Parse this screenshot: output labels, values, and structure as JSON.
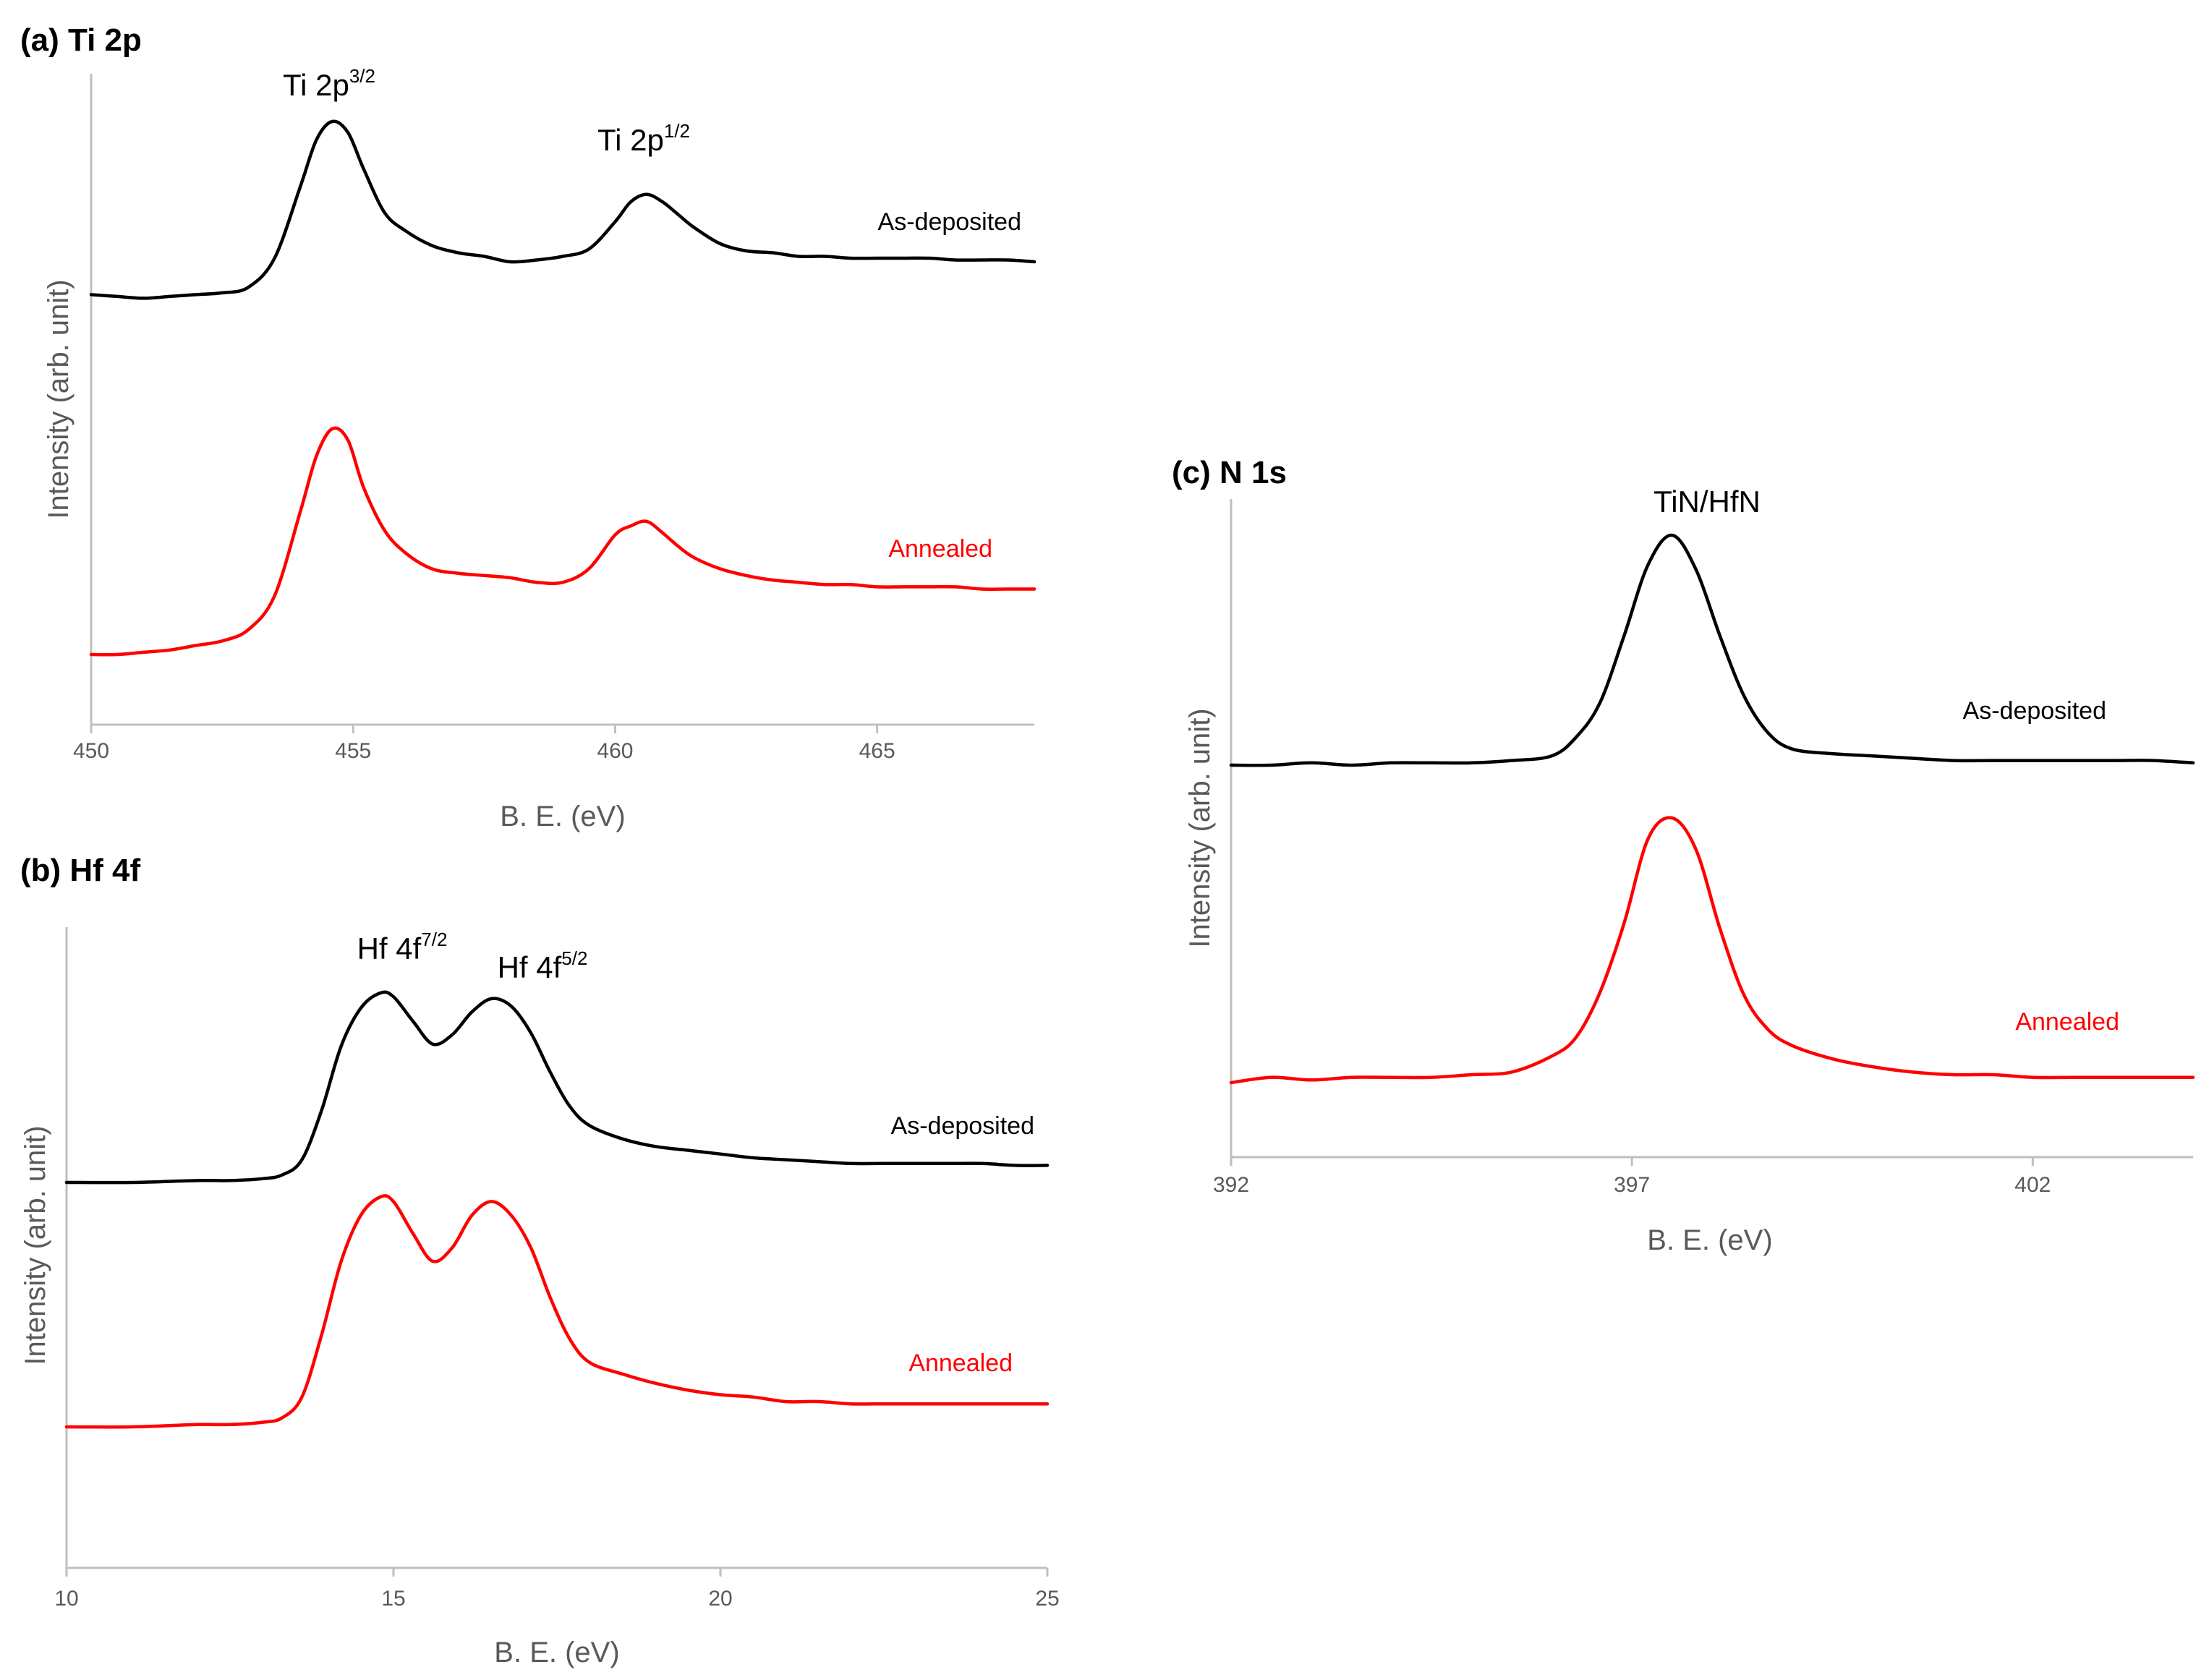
{
  "chart_data": [
    {
      "type": "line",
      "title": "(a) Ti 2p",
      "xlabel": "B. E. (eV)",
      "ylabel": "Intensity (arb. unit)",
      "xlim": [
        450,
        468
      ],
      "xticks": [
        450,
        455,
        460,
        465
      ],
      "x": [
        450.0,
        450.5,
        451.0,
        451.5,
        452.0,
        452.5,
        453.0,
        453.5,
        454.0,
        454.3,
        454.6,
        454.9,
        455.2,
        455.6,
        456.0,
        456.5,
        457.0,
        457.5,
        458.0,
        458.5,
        459.0,
        459.5,
        460.0,
        460.3,
        460.6,
        460.9,
        461.2,
        461.5,
        462.0,
        462.5,
        463.0,
        463.5,
        464.0,
        464.5,
        465.0,
        465.5,
        466.0,
        466.5,
        467.0,
        467.5,
        468.0
      ],
      "series": [
        {
          "name": "As-deposited",
          "color": "#000000",
          "values": [
            0.05,
            0.04,
            0.03,
            0.04,
            0.05,
            0.06,
            0.09,
            0.25,
            0.65,
            0.9,
            1.0,
            0.94,
            0.74,
            0.5,
            0.4,
            0.32,
            0.28,
            0.26,
            0.23,
            0.24,
            0.26,
            0.3,
            0.45,
            0.56,
            0.6,
            0.56,
            0.49,
            0.42,
            0.33,
            0.29,
            0.28,
            0.26,
            0.26,
            0.25,
            0.25,
            0.25,
            0.25,
            0.24,
            0.24,
            0.24,
            0.23
          ]
        },
        {
          "name": "Annealed",
          "color": "#ff0000",
          "values": [
            0.0,
            0.0,
            0.01,
            0.02,
            0.04,
            0.06,
            0.11,
            0.26,
            0.64,
            0.88,
            1.0,
            0.95,
            0.74,
            0.55,
            0.45,
            0.38,
            0.36,
            0.35,
            0.34,
            0.32,
            0.32,
            0.38,
            0.53,
            0.57,
            0.59,
            0.54,
            0.48,
            0.43,
            0.38,
            0.35,
            0.33,
            0.32,
            0.31,
            0.31,
            0.3,
            0.3,
            0.3,
            0.3,
            0.29,
            0.29,
            0.29
          ]
        }
      ],
      "annotations": [
        {
          "label": "Ti 2p",
          "sup": "3/2",
          "x": 454.6
        },
        {
          "label": "Ti 2p",
          "sup": "1/2",
          "x": 460.6
        }
      ]
    },
    {
      "type": "line",
      "title": "(b) Hf 4f",
      "xlabel": "B. E. (eV)",
      "ylabel": "Intensity (arb. unit)",
      "xlim": [
        10,
        25
      ],
      "xticks": [
        10,
        15,
        20,
        25
      ],
      "x": [
        10.0,
        11.0,
        12.0,
        12.5,
        13.0,
        13.3,
        13.6,
        13.9,
        14.2,
        14.5,
        14.8,
        15.0,
        15.3,
        15.6,
        15.9,
        16.2,
        16.5,
        16.8,
        17.1,
        17.4,
        17.7,
        18.0,
        18.5,
        19.0,
        19.5,
        20.0,
        20.5,
        21.0,
        21.5,
        22.0,
        22.5,
        23.0,
        23.5,
        24.0,
        24.5,
        25.0
      ],
      "series": [
        {
          "name": "As-deposited",
          "color": "#000000",
          "values": [
            0.0,
            0.0,
            0.01,
            0.01,
            0.02,
            0.04,
            0.12,
            0.38,
            0.72,
            0.92,
            1.0,
            0.98,
            0.85,
            0.73,
            0.78,
            0.9,
            0.97,
            0.93,
            0.79,
            0.58,
            0.4,
            0.3,
            0.23,
            0.19,
            0.17,
            0.15,
            0.13,
            0.12,
            0.11,
            0.1,
            0.1,
            0.1,
            0.1,
            0.1,
            0.09,
            0.09
          ]
        },
        {
          "name": "Annealed",
          "color": "#ff0000",
          "values": [
            0.0,
            0.0,
            0.01,
            0.01,
            0.02,
            0.04,
            0.13,
            0.4,
            0.72,
            0.92,
            1.0,
            0.98,
            0.84,
            0.72,
            0.78,
            0.92,
            0.98,
            0.92,
            0.78,
            0.56,
            0.38,
            0.28,
            0.23,
            0.19,
            0.16,
            0.14,
            0.13,
            0.11,
            0.11,
            0.1,
            0.1,
            0.1,
            0.1,
            0.1,
            0.1,
            0.1
          ]
        }
      ],
      "annotations": [
        {
          "label": "Hf 4f",
          "sup": "7/2",
          "x": 14.9
        },
        {
          "label": "Hf 4f",
          "sup": "5/2",
          "x": 16.5
        }
      ]
    },
    {
      "type": "line",
      "title": "(c) N 1s",
      "xlabel": "B. E. (eV)",
      "ylabel": "Intensity (arb. unit)",
      "xlim": [
        392,
        404
      ],
      "xticks": [
        392,
        397,
        402
      ],
      "x": [
        392.0,
        392.5,
        393.0,
        393.5,
        394.0,
        394.5,
        395.0,
        395.5,
        396.0,
        396.3,
        396.6,
        396.9,
        397.2,
        397.5,
        397.8,
        398.1,
        398.4,
        398.7,
        399.0,
        399.5,
        400.0,
        400.5,
        401.0,
        401.5,
        402.0,
        402.5,
        403.0,
        403.5,
        404.0
      ],
      "series": [
        {
          "name": "As-deposited",
          "color": "#000000",
          "values": [
            0.0,
            0.0,
            0.01,
            0.0,
            0.01,
            0.01,
            0.01,
            0.02,
            0.04,
            0.12,
            0.27,
            0.56,
            0.87,
            1.0,
            0.85,
            0.56,
            0.3,
            0.14,
            0.07,
            0.05,
            0.04,
            0.03,
            0.02,
            0.02,
            0.02,
            0.02,
            0.02,
            0.02,
            0.01
          ]
        },
        {
          "name": "Annealed",
          "color": "#ff0000",
          "values": [
            0.0,
            0.02,
            0.01,
            0.02,
            0.02,
            0.02,
            0.03,
            0.04,
            0.1,
            0.17,
            0.34,
            0.6,
            0.92,
            1.0,
            0.88,
            0.58,
            0.33,
            0.2,
            0.14,
            0.09,
            0.06,
            0.04,
            0.03,
            0.03,
            0.02,
            0.02,
            0.02,
            0.02,
            0.02
          ]
        }
      ],
      "annotations": [
        {
          "label": "TiN/HfN",
          "sup": "",
          "x": 397.0
        }
      ]
    }
  ]
}
